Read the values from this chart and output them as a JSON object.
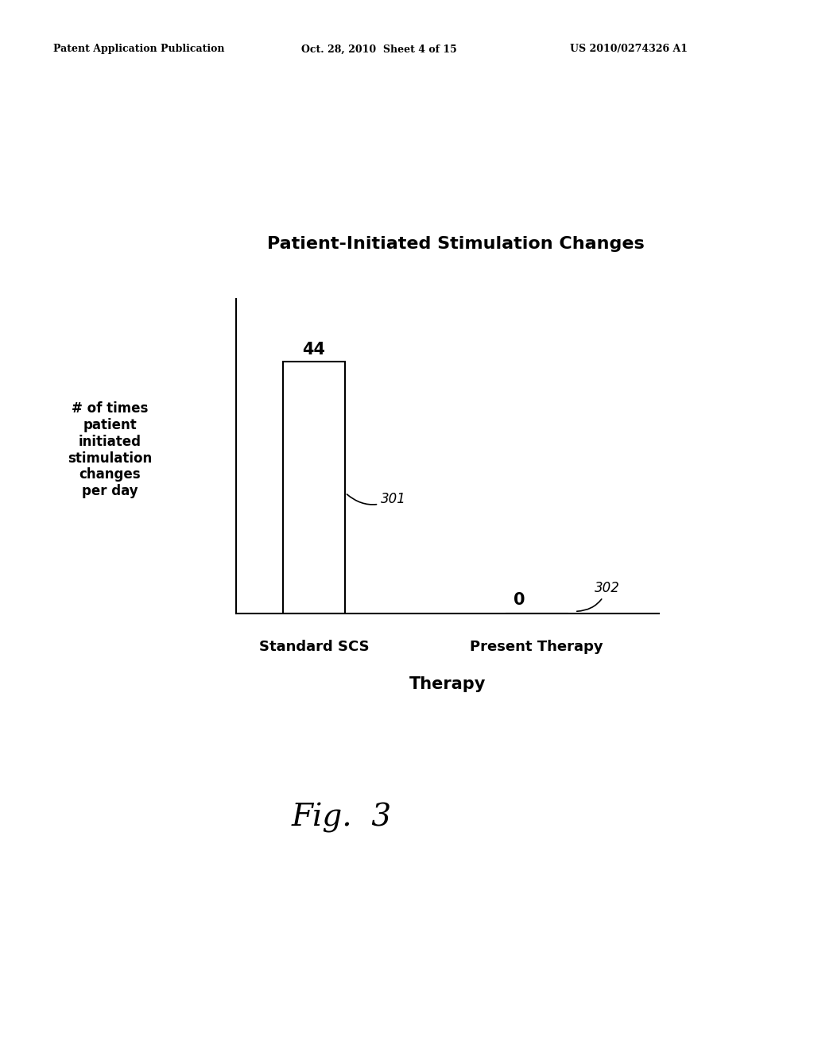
{
  "title": "Patient-Initiated Stimulation Changes",
  "bar_categories": [
    "Standard SCS",
    "Present Therapy"
  ],
  "bar_values": [
    44,
    0
  ],
  "bar_colors": [
    "white",
    "white"
  ],
  "bar_edgecolors": [
    "black",
    "black"
  ],
  "ylabel_lines": [
    "# of times",
    "patient",
    "initiated",
    "stimulation",
    "changes",
    "per day"
  ],
  "xlabel": "Therapy",
  "bar_labels": [
    "44",
    "0"
  ],
  "ref_label_301": "301",
  "ref_label_302": "302",
  "fig_label": "Fig.  3",
  "header_left": "Patent Application Publication",
  "header_mid": "Oct. 28, 2010  Sheet 4 of 15",
  "header_right": "US 2010/0274326 A1",
  "background_color": "#ffffff",
  "bar_width": 0.28,
  "ylim": [
    0,
    55
  ],
  "title_fontsize": 16,
  "xlabel_fontsize": 15,
  "ylabel_fontsize": 12,
  "bar_label_fontsize": 15,
  "cat_label_fontsize": 13,
  "header_fontsize": 9,
  "fig_label_fontsize": 28
}
